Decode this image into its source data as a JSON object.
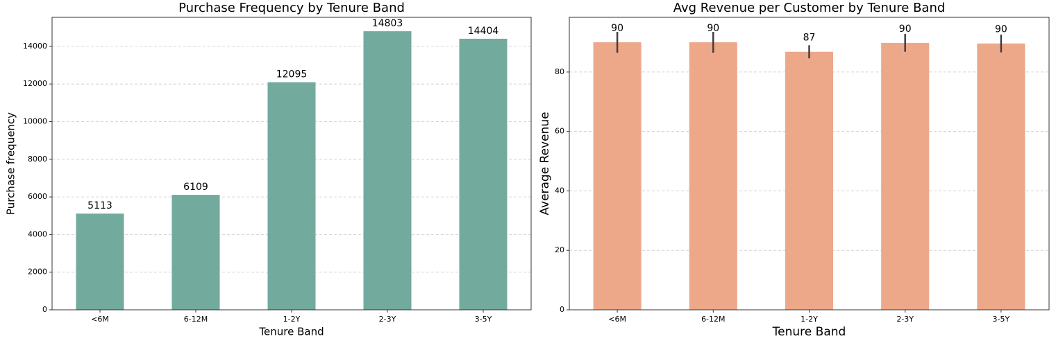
{
  "chart_data": [
    {
      "type": "bar",
      "title": "Purchase Frequency by Tenure Band",
      "xlabel": "Tenure Band",
      "ylabel": "Purchase frequency",
      "categories": [
        "<6M",
        "6-12M",
        "1-2Y",
        "2-3Y",
        "3-5Y"
      ],
      "values": [
        5113,
        6109,
        12095,
        14803,
        14404
      ],
      "color": "#72aa9e",
      "ylim": [
        0,
        15543
      ],
      "yticks": [
        0,
        2000,
        4000,
        6000,
        8000,
        10000,
        12000,
        14000
      ],
      "grid": true
    },
    {
      "type": "bar",
      "title": "Avg Revenue per Customer by Tenure Band",
      "xlabel": "Tenure Band",
      "ylabel": "Average Revenue",
      "categories": [
        "<6M",
        "6-12M",
        "1-2Y",
        "2-3Y",
        "3-5Y"
      ],
      "values": [
        90.0,
        90.0,
        86.8,
        89.8,
        89.6
      ],
      "value_labels": [
        "90",
        "90",
        "87",
        "90",
        "90"
      ],
      "errors": [
        3.5,
        3.5,
        2.2,
        3.0,
        3.0
      ],
      "color": "#eda88a",
      "error_color": "#404040",
      "ylim": [
        0,
        98.4
      ],
      "yticks": [
        0,
        20,
        40,
        60,
        80
      ],
      "grid": true
    }
  ]
}
